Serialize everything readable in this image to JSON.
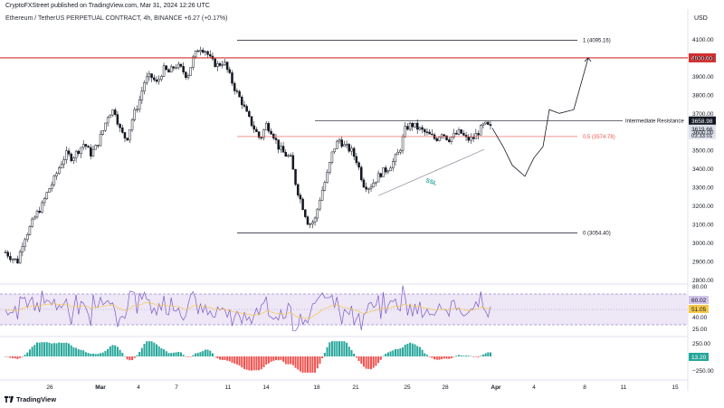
{
  "header": {
    "publisher_line": "CryptoFXStreet published on TradingView.com, Mar 31, 2024 12:26 UTC",
    "symbol_line": "Ethereum / TetherUS PERPETUAL CONTRACT, 4h, BINANCE  +6.27 (+0.17%)",
    "currency": "USD"
  },
  "footer": {
    "brand": "TradingView"
  },
  "colors": {
    "up": "#26a69a",
    "down": "#ef5350",
    "fib_line": "#131722",
    "fib_mid": "#ef5350",
    "key_level": "#d32f2f",
    "rsi_line": "#7e57c2",
    "rsi_ma": "#f7c948",
    "rsi_band": "#ede7f6"
  },
  "chart_data": [
    {
      "type": "candlestick",
      "title": "Ethereum / TetherUS PERPETUAL CONTRACT, 4h, BINANCE",
      "change": "+6.27 (+0.17%)",
      "x_ticks": [
        "26",
        "Mar",
        "4",
        "7",
        "11",
        "14",
        "18",
        "21",
        "25",
        "28",
        "Apr",
        "4",
        "8",
        "11",
        "15"
      ],
      "y_ticks": [
        2800,
        2900,
        3000,
        3100,
        3200,
        3300,
        3400,
        3500,
        3600,
        3700,
        3800,
        3900,
        4000,
        4100
      ],
      "ylim": [
        2760,
        4220
      ],
      "series_close_path": [
        2950,
        2920,
        2900,
        3020,
        3080,
        3150,
        3200,
        3280,
        3340,
        3420,
        3480,
        3460,
        3500,
        3540,
        3480,
        3520,
        3600,
        3700,
        3720,
        3600,
        3560,
        3680,
        3760,
        3880,
        3900,
        3860,
        3940,
        3920,
        3960,
        3940,
        3900,
        4000,
        4060,
        4040,
        3980,
        3960,
        3980,
        3900,
        3820,
        3760,
        3680,
        3620,
        3560,
        3640,
        3600,
        3520,
        3480,
        3460,
        3300,
        3200,
        3100,
        3120,
        3260,
        3360,
        3500,
        3560,
        3520,
        3500,
        3440,
        3320,
        3300,
        3340,
        3380,
        3400,
        3440,
        3500,
        3620,
        3640,
        3620,
        3600,
        3580,
        3560,
        3600,
        3560,
        3580,
        3600,
        3560,
        3560,
        3600,
        3640,
        3620
      ],
      "fibonacci": [
        {
          "level": "1",
          "value": 4095.16,
          "label": "1 (4095.16)"
        },
        {
          "level": "0.5",
          "value": 3574.78,
          "label": "0.5 (3574.78)"
        },
        {
          "level": "0",
          "value": 3054.4,
          "label": "0 (3054.40)"
        }
      ],
      "levels": [
        {
          "value": 4000.0,
          "label": "4000.00"
        },
        {
          "value": 3658.98,
          "label": "Intermediate Resistance",
          "price_label": "3658.98"
        }
      ],
      "annotations": [
        {
          "text": "SSL"
        }
      ],
      "price_tag": {
        "price": "3619.66",
        "countdown": "03:33:01"
      },
      "projection_path": [
        3620,
        3520,
        3420,
        3360,
        3460,
        3520,
        3720,
        3700,
        3720,
        4000
      ]
    },
    {
      "type": "line",
      "name": "RSI",
      "y_ticks": [
        25.0,
        40.0,
        60.0,
        80.0
      ],
      "band": [
        30,
        70
      ],
      "current": "60.02",
      "ma_current": "51.05"
    },
    {
      "type": "bar",
      "name": "Histogram",
      "y_ticks": [
        "250.00",
        "−250.00"
      ],
      "current": "13.20"
    }
  ]
}
